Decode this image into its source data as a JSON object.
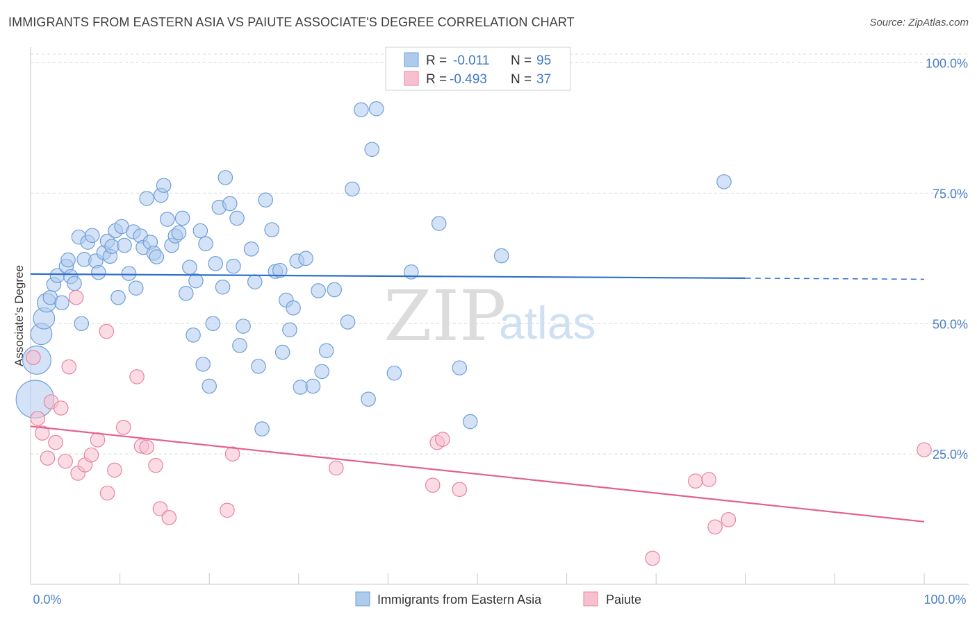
{
  "header": {
    "title": "IMMIGRANTS FROM EASTERN ASIA VS PAIUTE ASSOCIATE'S DEGREE CORRELATION CHART",
    "source": "Source: ZipAtlas.com"
  },
  "watermark": {
    "zip": "ZIP",
    "atlas": "atlas"
  },
  "colors": {
    "blue_fill": "#aecbee",
    "blue_stroke": "#6f9fd8",
    "blue_line": "#2f6ec8",
    "pink_fill": "#f7bfd0",
    "pink_stroke": "#e7849f",
    "pink_line": "#e35f8e",
    "grid": "#d9d9d9",
    "axis_text": "#4a7fc5"
  },
  "legend": {
    "rows": [
      {
        "r_label": "R =",
        "r_value": "-0.011",
        "n_label": "N =",
        "n_value": "95"
      },
      {
        "r_label": "R =",
        "r_value": "-0.493",
        "n_label": "N =",
        "n_value": "37"
      }
    ]
  },
  "chart_data": {
    "type": "scatter",
    "title": "IMMIGRANTS FROM EASTERN ASIA VS PAIUTE ASSOCIATE'S DEGREE CORRELATION CHART",
    "xlabel": "",
    "ylabel": "Associate's Degree",
    "xlim": [
      0,
      100
    ],
    "ylim": [
      0,
      103
    ],
    "x_tick_labels": [
      "0.0%",
      "100.0%"
    ],
    "y_tick_values": [
      25,
      50,
      75,
      100
    ],
    "y_tick_labels": [
      "25.0%",
      "50.0%",
      "75.0%",
      "100.0%"
    ],
    "grid": true,
    "series": [
      {
        "name": "Immigrants from Eastern Asia",
        "color": "blue",
        "trend": {
          "x0": 0,
          "y0": 59.5,
          "x1": 80,
          "y1": 58.7,
          "dash_to_x": 100,
          "dash_to_y": 58.5
        },
        "points": [
          {
            "x": 0.5,
            "y": 35.5,
            "s": 3.2
          },
          {
            "x": 0.7,
            "y": 43.0,
            "s": 2.4
          },
          {
            "x": 1.2,
            "y": 48.0,
            "s": 1.8
          },
          {
            "x": 1.5,
            "y": 51.0,
            "s": 1.8
          },
          {
            "x": 1.8,
            "y": 54.0,
            "s": 1.6
          },
          {
            "x": 2.2,
            "y": 55.0,
            "s": 1.2
          },
          {
            "x": 2.6,
            "y": 57.5,
            "s": 1.2
          },
          {
            "x": 3.0,
            "y": 59.2,
            "s": 1.2
          },
          {
            "x": 3.5,
            "y": 54.0,
            "s": 1.2
          },
          {
            "x": 4.0,
            "y": 61.0,
            "s": 1.2
          },
          {
            "x": 4.2,
            "y": 62.2,
            "s": 1.2
          },
          {
            "x": 4.5,
            "y": 59.0,
            "s": 1.2
          },
          {
            "x": 4.9,
            "y": 57.7,
            "s": 1.2
          },
          {
            "x": 5.7,
            "y": 50.0,
            "s": 1.2
          },
          {
            "x": 5.4,
            "y": 66.6,
            "s": 1.2
          },
          {
            "x": 6.0,
            "y": 62.3,
            "s": 1.2
          },
          {
            "x": 6.4,
            "y": 65.6,
            "s": 1.2
          },
          {
            "x": 6.9,
            "y": 66.9,
            "s": 1.2
          },
          {
            "x": 7.3,
            "y": 62.0,
            "s": 1.2
          },
          {
            "x": 7.6,
            "y": 59.8,
            "s": 1.2
          },
          {
            "x": 8.2,
            "y": 63.6,
            "s": 1.2
          },
          {
            "x": 8.6,
            "y": 65.8,
            "s": 1.2
          },
          {
            "x": 8.9,
            "y": 62.9,
            "s": 1.2
          },
          {
            "x": 9.1,
            "y": 64.8,
            "s": 1.2
          },
          {
            "x": 9.5,
            "y": 67.8,
            "s": 1.2
          },
          {
            "x": 9.8,
            "y": 55.0,
            "s": 1.2
          },
          {
            "x": 10.2,
            "y": 68.6,
            "s": 1.2
          },
          {
            "x": 10.5,
            "y": 65.0,
            "s": 1.2
          },
          {
            "x": 11.0,
            "y": 59.6,
            "s": 1.2
          },
          {
            "x": 11.5,
            "y": 67.6,
            "s": 1.2
          },
          {
            "x": 11.8,
            "y": 56.8,
            "s": 1.2
          },
          {
            "x": 12.3,
            "y": 66.8,
            "s": 1.2
          },
          {
            "x": 12.6,
            "y": 64.6,
            "s": 1.2
          },
          {
            "x": 13.0,
            "y": 74.0,
            "s": 1.2
          },
          {
            "x": 13.4,
            "y": 65.6,
            "s": 1.2
          },
          {
            "x": 13.8,
            "y": 63.5,
            "s": 1.2
          },
          {
            "x": 14.1,
            "y": 62.8,
            "s": 1.2
          },
          {
            "x": 14.6,
            "y": 74.6,
            "s": 1.2
          },
          {
            "x": 14.9,
            "y": 76.5,
            "s": 1.2
          },
          {
            "x": 15.3,
            "y": 70.0,
            "s": 1.2
          },
          {
            "x": 15.8,
            "y": 65.0,
            "s": 1.2
          },
          {
            "x": 16.2,
            "y": 66.8,
            "s": 1.2
          },
          {
            "x": 16.6,
            "y": 67.4,
            "s": 1.2
          },
          {
            "x": 17.0,
            "y": 70.2,
            "s": 1.2
          },
          {
            "x": 17.4,
            "y": 55.8,
            "s": 1.2
          },
          {
            "x": 17.8,
            "y": 60.8,
            "s": 1.2
          },
          {
            "x": 18.2,
            "y": 47.8,
            "s": 1.2
          },
          {
            "x": 18.5,
            "y": 58.2,
            "s": 1.2
          },
          {
            "x": 19.0,
            "y": 67.8,
            "s": 1.2
          },
          {
            "x": 19.3,
            "y": 42.2,
            "s": 1.2
          },
          {
            "x": 19.6,
            "y": 65.3,
            "s": 1.2
          },
          {
            "x": 20.0,
            "y": 38.0,
            "s": 1.2
          },
          {
            "x": 20.4,
            "y": 50.0,
            "s": 1.2
          },
          {
            "x": 20.7,
            "y": 61.5,
            "s": 1.2
          },
          {
            "x": 21.1,
            "y": 72.3,
            "s": 1.2
          },
          {
            "x": 21.5,
            "y": 57.0,
            "s": 1.2
          },
          {
            "x": 21.8,
            "y": 78.0,
            "s": 1.2
          },
          {
            "x": 22.3,
            "y": 73.0,
            "s": 1.2
          },
          {
            "x": 22.7,
            "y": 61.0,
            "s": 1.2
          },
          {
            "x": 23.1,
            "y": 70.2,
            "s": 1.2
          },
          {
            "x": 23.4,
            "y": 45.8,
            "s": 1.2
          },
          {
            "x": 23.8,
            "y": 49.5,
            "s": 1.2
          },
          {
            "x": 24.7,
            "y": 64.3,
            "s": 1.2
          },
          {
            "x": 25.1,
            "y": 58.0,
            "s": 1.2
          },
          {
            "x": 25.5,
            "y": 41.8,
            "s": 1.2
          },
          {
            "x": 25.9,
            "y": 29.8,
            "s": 1.2
          },
          {
            "x": 26.3,
            "y": 73.7,
            "s": 1.2
          },
          {
            "x": 27.0,
            "y": 68.0,
            "s": 1.2
          },
          {
            "x": 27.4,
            "y": 60.0,
            "s": 1.2
          },
          {
            "x": 27.9,
            "y": 60.2,
            "s": 1.2
          },
          {
            "x": 28.2,
            "y": 44.5,
            "s": 1.2
          },
          {
            "x": 28.6,
            "y": 54.5,
            "s": 1.2
          },
          {
            "x": 29.0,
            "y": 48.8,
            "s": 1.2
          },
          {
            "x": 29.4,
            "y": 53.0,
            "s": 1.2
          },
          {
            "x": 29.8,
            "y": 62.0,
            "s": 1.2
          },
          {
            "x": 30.2,
            "y": 37.8,
            "s": 1.2
          },
          {
            "x": 30.8,
            "y": 62.5,
            "s": 1.2
          },
          {
            "x": 31.6,
            "y": 38.0,
            "s": 1.2
          },
          {
            "x": 32.2,
            "y": 56.3,
            "s": 1.2
          },
          {
            "x": 32.6,
            "y": 40.8,
            "s": 1.2
          },
          {
            "x": 33.1,
            "y": 44.8,
            "s": 1.2
          },
          {
            "x": 34.0,
            "y": 56.5,
            "s": 1.2
          },
          {
            "x": 35.5,
            "y": 50.3,
            "s": 1.2
          },
          {
            "x": 36.0,
            "y": 75.8,
            "s": 1.2
          },
          {
            "x": 37.0,
            "y": 91.0,
            "s": 1.2
          },
          {
            "x": 37.8,
            "y": 35.5,
            "s": 1.2
          },
          {
            "x": 38.2,
            "y": 83.4,
            "s": 1.2
          },
          {
            "x": 38.7,
            "y": 91.2,
            "s": 1.2
          },
          {
            "x": 40.7,
            "y": 40.5,
            "s": 1.2
          },
          {
            "x": 42.6,
            "y": 59.9,
            "s": 1.2
          },
          {
            "x": 45.7,
            "y": 69.2,
            "s": 1.2
          },
          {
            "x": 48.0,
            "y": 41.5,
            "s": 1.2
          },
          {
            "x": 49.2,
            "y": 31.2,
            "s": 1.2
          },
          {
            "x": 52.7,
            "y": 63.0,
            "s": 1.2
          },
          {
            "x": 77.6,
            "y": 77.2,
            "s": 1.2
          }
        ]
      },
      {
        "name": "Paiute",
        "color": "pink",
        "trend": {
          "x0": 0,
          "y0": 30.3,
          "x1": 100,
          "y1": 12.0
        },
        "points": [
          {
            "x": 0.3,
            "y": 43.5,
            "s": 1.2
          },
          {
            "x": 0.8,
            "y": 31.8,
            "s": 1.2
          },
          {
            "x": 1.3,
            "y": 29.0,
            "s": 1.2
          },
          {
            "x": 1.9,
            "y": 24.2,
            "s": 1.2
          },
          {
            "x": 2.3,
            "y": 35.0,
            "s": 1.2
          },
          {
            "x": 2.8,
            "y": 27.2,
            "s": 1.2
          },
          {
            "x": 3.4,
            "y": 33.8,
            "s": 1.2
          },
          {
            "x": 3.9,
            "y": 23.6,
            "s": 1.2
          },
          {
            "x": 4.3,
            "y": 41.7,
            "s": 1.2
          },
          {
            "x": 5.1,
            "y": 55.0,
            "s": 1.2
          },
          {
            "x": 5.3,
            "y": 21.3,
            "s": 1.2
          },
          {
            "x": 6.1,
            "y": 22.9,
            "s": 1.2
          },
          {
            "x": 6.8,
            "y": 24.8,
            "s": 1.2
          },
          {
            "x": 7.5,
            "y": 27.7,
            "s": 1.2
          },
          {
            "x": 8.5,
            "y": 48.5,
            "s": 1.2
          },
          {
            "x": 8.6,
            "y": 17.5,
            "s": 1.2
          },
          {
            "x": 9.4,
            "y": 21.9,
            "s": 1.2
          },
          {
            "x": 10.4,
            "y": 30.1,
            "s": 1.2
          },
          {
            "x": 11.9,
            "y": 39.8,
            "s": 1.2
          },
          {
            "x": 12.4,
            "y": 26.5,
            "s": 1.2
          },
          {
            "x": 13.0,
            "y": 26.3,
            "s": 1.2
          },
          {
            "x": 14.0,
            "y": 22.8,
            "s": 1.2
          },
          {
            "x": 14.5,
            "y": 14.5,
            "s": 1.2
          },
          {
            "x": 15.5,
            "y": 12.8,
            "s": 1.2
          },
          {
            "x": 22.0,
            "y": 14.2,
            "s": 1.2
          },
          {
            "x": 22.6,
            "y": 25.0,
            "s": 1.2
          },
          {
            "x": 34.2,
            "y": 22.3,
            "s": 1.2
          },
          {
            "x": 45.0,
            "y": 19.0,
            "s": 1.2
          },
          {
            "x": 45.5,
            "y": 27.2,
            "s": 1.2
          },
          {
            "x": 46.1,
            "y": 27.8,
            "s": 1.2
          },
          {
            "x": 48.0,
            "y": 18.2,
            "s": 1.2
          },
          {
            "x": 69.6,
            "y": 5.0,
            "s": 1.2
          },
          {
            "x": 74.4,
            "y": 19.8,
            "s": 1.2
          },
          {
            "x": 75.9,
            "y": 20.1,
            "s": 1.2
          },
          {
            "x": 76.6,
            "y": 11.0,
            "s": 1.2
          },
          {
            "x": 78.1,
            "y": 12.4,
            "s": 1.2
          },
          {
            "x": 100.0,
            "y": 25.8,
            "s": 1.2
          }
        ]
      }
    ]
  }
}
